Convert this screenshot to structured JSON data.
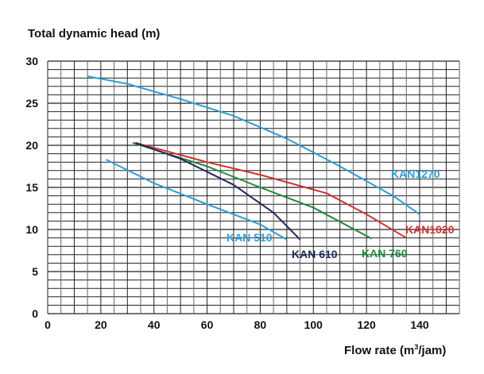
{
  "chart_data": {
    "type": "line",
    "title": "",
    "ylabel": "Total dynamic head (m)",
    "xlabel_prefix": "Flow rate (m",
    "xlabel_sup": "3",
    "xlabel_suffix": "/jam)",
    "xlim": [
      0,
      155
    ],
    "ylim": [
      0,
      30
    ],
    "xticks": [
      "0",
      "20",
      "40",
      "60",
      "80",
      "100",
      "120",
      "140"
    ],
    "yticks": [
      "0",
      "5",
      "10",
      "15",
      "20",
      "25",
      "30"
    ],
    "grid": true,
    "series": [
      {
        "name": "KAN1270",
        "color": "#2a9fd8",
        "points": [
          [
            15,
            28.2
          ],
          [
            30,
            27.3
          ],
          [
            50,
            25.5
          ],
          [
            70,
            23.5
          ],
          [
            90,
            20.8
          ],
          [
            110,
            17.5
          ],
          [
            130,
            14
          ],
          [
            140,
            11.8
          ]
        ]
      },
      {
        "name": "KAN1020",
        "color": "#d0312d",
        "points": [
          [
            33,
            20.3
          ],
          [
            60,
            18
          ],
          [
            80,
            16.5
          ],
          [
            105,
            14.3
          ],
          [
            120,
            11.8
          ],
          [
            135,
            9
          ]
        ]
      },
      {
        "name": "KAN 760",
        "color": "#1e8a3c",
        "points": [
          [
            32,
            20.3
          ],
          [
            60,
            17.5
          ],
          [
            80,
            15
          ],
          [
            100,
            12.6
          ],
          [
            122,
            8.9
          ]
        ]
      },
      {
        "name": "KAN 610",
        "color": "#1f2a5c",
        "points": [
          [
            33,
            20.3
          ],
          [
            50,
            18.4
          ],
          [
            70,
            15.3
          ],
          [
            85,
            12
          ],
          [
            95,
            8.8
          ]
        ]
      },
      {
        "name": "KAN 510",
        "color": "#2a9fd8",
        "points": [
          [
            22,
            18.3
          ],
          [
            40,
            15.5
          ],
          [
            60,
            13
          ],
          [
            80,
            10.6
          ],
          [
            90,
            8.8
          ]
        ]
      }
    ]
  }
}
